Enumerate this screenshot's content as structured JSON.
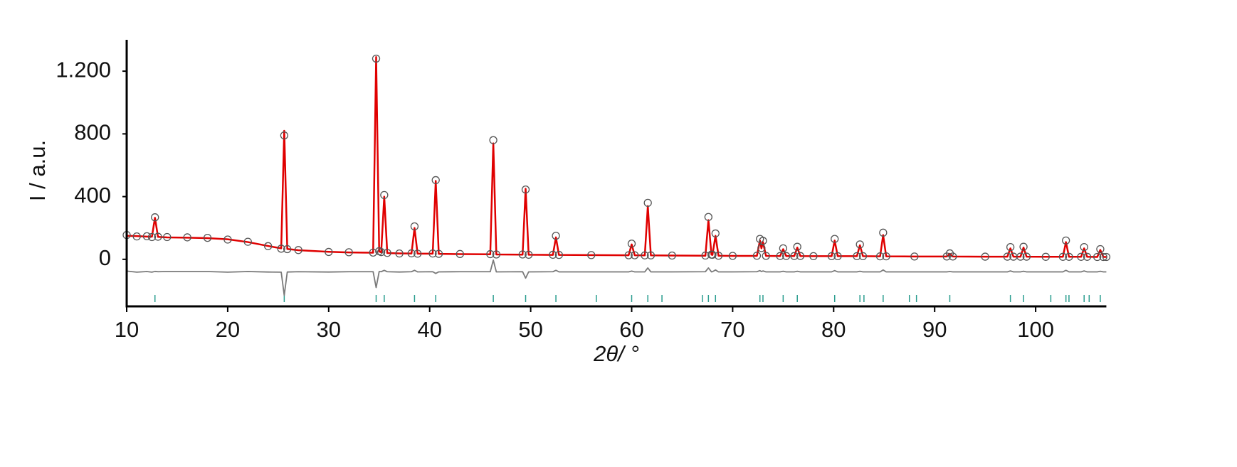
{
  "chart_data": {
    "type": "line",
    "xlabel": "2θ/ °",
    "ylabel": "I / a.u.",
    "xlim": [
      10,
      107
    ],
    "ylim": [
      -300,
      1400
    ],
    "xticks": [
      10,
      20,
      30,
      40,
      50,
      60,
      70,
      80,
      90,
      100
    ],
    "yticks": [
      0,
      400,
      800,
      {
        "value": 1200,
        "label": "1.200"
      }
    ],
    "x": [
      10,
      11,
      12,
      12.5,
      12.8,
      13.1,
      14,
      16,
      18,
      20,
      22,
      24,
      25.3,
      25.6,
      25.9,
      27,
      30,
      32,
      34.4,
      34.7,
      35,
      35.2,
      35.5,
      35.8,
      37,
      38.2,
      38.5,
      38.8,
      40.3,
      40.6,
      40.9,
      43,
      46,
      46.3,
      46.6,
      49.2,
      49.5,
      49.8,
      52.2,
      52.5,
      52.8,
      56,
      59.7,
      60,
      60.3,
      61.3,
      61.6,
      61.9,
      64,
      67.3,
      67.6,
      67.9,
      68,
      68.3,
      68.6,
      70,
      72.4,
      72.7,
      72.85,
      73,
      73.3,
      74.7,
      75,
      75.3,
      76.1,
      76.4,
      76.7,
      78,
      79.8,
      80.1,
      80.4,
      82.3,
      82.6,
      82.9,
      84.6,
      84.9,
      85.2,
      88,
      91.2,
      91.5,
      91.8,
      95,
      97.2,
      97.5,
      97.8,
      98.5,
      98.8,
      99.1,
      101,
      102.7,
      103,
      103.3,
      104.5,
      104.8,
      105.1,
      106.1,
      106.4,
      106.7,
      107
    ],
    "series": [
      {
        "mode": "markers",
        "color": "#555555",
        "values": [
          155,
          146,
          147,
          142,
          268,
          144,
          142,
          140,
          137,
          126,
          112,
          84,
          68,
          790,
          65,
          59,
          47,
          45,
          43,
          1280,
          52,
          46,
          410,
          41,
          37,
          38,
          210,
          36,
          37,
          505,
          35,
          34,
          33,
          760,
          31,
          31,
          445,
          29,
          29,
          150,
          28,
          27,
          26,
          100,
          26,
          25,
          360,
          25,
          24,
          24,
          270,
          30,
          29,
          165,
          23,
          22,
          23,
          130,
          72,
          118,
          22,
          21,
          70,
          21,
          21,
          80,
          21,
          20,
          20,
          130,
          20,
          20,
          95,
          20,
          19,
          170,
          19,
          18,
          18,
          38,
          18,
          17,
          17,
          78,
          17,
          17,
          80,
          17,
          16,
          16,
          120,
          16,
          16,
          78,
          16,
          15,
          65,
          15,
          15
        ]
      },
      {
        "mode": "line",
        "color": "#e00000",
        "values": [
          150,
          148,
          145,
          144,
          265,
          143,
          140,
          138,
          135,
          128,
          110,
          85,
          70,
          820,
          66,
          58,
          48,
          44,
          42,
          1290,
          50,
          45,
          400,
          40,
          38,
          37,
          200,
          36,
          36,
          500,
          35,
          33,
          32,
          740,
          31,
          30,
          450,
          29,
          28,
          140,
          28,
          27,
          26,
          95,
          26,
          25,
          340,
          25,
          24,
          23,
          250,
          30,
          28,
          150,
          23,
          22,
          22,
          120,
          70,
          110,
          22,
          21,
          65,
          21,
          21,
          75,
          21,
          20,
          20,
          120,
          20,
          20,
          90,
          20,
          19,
          155,
          19,
          18,
          18,
          35,
          18,
          17,
          17,
          70,
          17,
          17,
          75,
          17,
          16,
          16,
          110,
          16,
          16,
          70,
          16,
          15,
          60,
          15,
          15
        ]
      },
      {
        "mode": "line",
        "color": "#7a7a7a",
        "values": [
          -75,
          -82,
          -78,
          -82,
          -77,
          -79,
          -78,
          -78,
          -78,
          -82,
          -78,
          -81,
          -82,
          -230,
          -81,
          -79,
          -81,
          -79,
          -79,
          -180,
          -78,
          -79,
          -70,
          -79,
          -81,
          -79,
          -70,
          -80,
          -79,
          -90,
          -80,
          -79,
          -79,
          -5,
          -80,
          -79,
          -120,
          -80,
          -79,
          -70,
          -80,
          -80,
          -80,
          -75,
          -80,
          -80,
          -55,
          -80,
          -80,
          -79,
          -55,
          -80,
          -79,
          -68,
          -80,
          -80,
          -79,
          -72,
          -78,
          -74,
          -80,
          -80,
          -76,
          -80,
          -80,
          -76,
          -80,
          -80,
          -80,
          -72,
          -80,
          -80,
          -76,
          -80,
          -80,
          -68,
          -80,
          -80,
          -80,
          -78,
          -80,
          -80,
          -80,
          -74,
          -80,
          -80,
          -76,
          -80,
          -80,
          -80,
          -70,
          -80,
          -80,
          -74,
          -80,
          -80,
          -76,
          -80,
          -80
        ]
      }
    ],
    "reflections": {
      "color": "#2a9d8f",
      "x": [
        12.8,
        25.6,
        34.7,
        35.5,
        38.5,
        40.6,
        46.3,
        49.5,
        52.5,
        56.5,
        60,
        61.6,
        63,
        67,
        67.6,
        68.3,
        72.7,
        73,
        75,
        76.4,
        80.1,
        82.6,
        83,
        84.9,
        87.5,
        88.2,
        91.5,
        97.5,
        98.8,
        101.5,
        103,
        103.3,
        104.8,
        105.3,
        106.4
      ]
    }
  }
}
